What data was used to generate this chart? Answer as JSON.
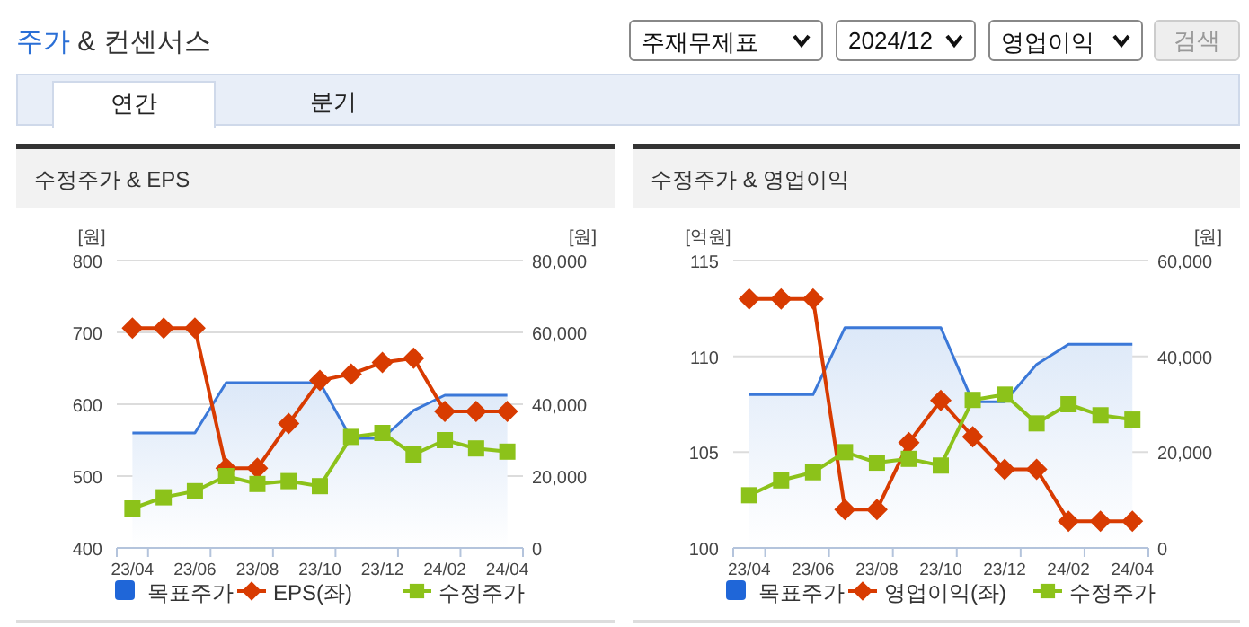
{
  "chart_data": [
    {
      "type": "other",
      "annotations": [
        "주가 & 컨센서스",
        "주재무제표",
        "2024/12",
        "영업이익",
        "검색",
        "연간",
        "분기"
      ]
    },
    {
      "type": "line",
      "title": "수정주가 & EPS",
      "ylabel": "[원]",
      "y2label": "[원]",
      "categories": [
        "23/04",
        null,
        "23/06",
        null,
        "23/08",
        null,
        "23/10",
        null,
        "23/12",
        null,
        "24/02",
        null,
        "24/04"
      ],
      "series": [
        {
          "name": "목표주가",
          "type": "area",
          "axis": "y2",
          "color": "#3b78d8",
          "values": [
            32000,
            32000,
            32000,
            46000,
            46000,
            46000,
            46000,
            30500,
            30500,
            38300,
            42500,
            42500,
            42500
          ]
        },
        {
          "name": "EPS(좌)",
          "type": "line",
          "marker": "diamond",
          "color": "#d83b01",
          "values": [
            706,
            706,
            706,
            511,
            511,
            573,
            633,
            642,
            658,
            664,
            590,
            590,
            590
          ]
        },
        {
          "name": "수정주가",
          "type": "line",
          "marker": "square",
          "axis": "y2",
          "color": "#8cc21a",
          "values": [
            11000,
            14100,
            15800,
            20000,
            17800,
            18600,
            17200,
            30900,
            32000,
            26000,
            30000,
            27700,
            26800
          ]
        }
      ],
      "ylim": [
        400,
        800
      ],
      "yticks": [
        400,
        500,
        600,
        700,
        800
      ],
      "y2lim": [
        0,
        80000
      ],
      "y2ticks": [
        {
          "value": 0,
          "label": "0"
        },
        {
          "value": 20000,
          "label": "20,000"
        },
        {
          "value": 40000,
          "label": "40,000"
        },
        {
          "value": 60000,
          "label": "60,000"
        },
        {
          "value": 80000,
          "label": "80,000"
        }
      ],
      "grid": "y",
      "legend": "bottom"
    },
    {
      "type": "line",
      "title": "수정주가 & 영업이익",
      "ylabel": "[억원]",
      "y2label": "[원]",
      "categories": [
        "23/04",
        null,
        "23/06",
        null,
        "23/08",
        null,
        "23/10",
        null,
        "23/12",
        null,
        "24/02",
        null,
        "24/04"
      ],
      "series": [
        {
          "name": "목표주가",
          "type": "area",
          "axis": "y2",
          "color": "#3b78d8",
          "values": [
            32000,
            32000,
            32000,
            46000,
            46000,
            46000,
            46000,
            30500,
            30500,
            38300,
            42500,
            42500,
            42500
          ]
        },
        {
          "name": "영업이익(좌)",
          "type": "line",
          "marker": "diamond",
          "color": "#d83b01",
          "values": [
            113,
            113,
            113,
            102,
            102,
            105.5,
            107.7,
            105.8,
            104.1,
            104.1,
            101.4,
            101.4,
            101.4
          ]
        },
        {
          "name": "수정주가",
          "type": "line",
          "marker": "square",
          "axis": "y2",
          "color": "#8cc21a",
          "values": [
            11000,
            14100,
            15800,
            20000,
            17800,
            18600,
            17200,
            30900,
            32000,
            26000,
            30000,
            27700,
            26800
          ]
        }
      ],
      "ylim": [
        100,
        115
      ],
      "yticks": [
        100,
        105,
        110,
        115
      ],
      "y2lim": [
        0,
        60000
      ],
      "y2ticks": [
        {
          "value": 0,
          "label": "0"
        },
        {
          "value": 20000,
          "label": "20,000"
        },
        {
          "value": 40000,
          "label": "40,000"
        },
        {
          "value": 60000,
          "label": "60,000"
        }
      ],
      "grid": "y",
      "legend": "bottom"
    }
  ]
}
